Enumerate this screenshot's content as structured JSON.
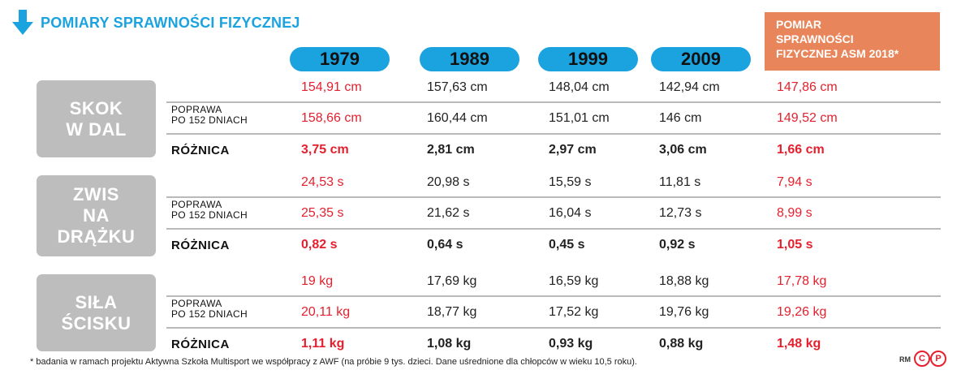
{
  "title": "POMIARY SPRAWNOŚCI FIZYCZNEJ",
  "asm_header": "POMIAR\nSPRAWNOŚCI\nFIZYCZNEJ ASM 2018*",
  "years": [
    "1979",
    "1989",
    "1999",
    "2009"
  ],
  "row_labels": {
    "baseline": "",
    "improvement": "POPRAWA\nPO 152 DNIACH",
    "difference": "RÓŻNICA"
  },
  "colors": {
    "accent": "#1aa3df",
    "asm": "#e9855a",
    "red": "#e5202e",
    "category": "#bdbdbd"
  },
  "chart_data": {
    "type": "table",
    "title": "POMIARY SPRAWNOŚCI FIZYCZNEJ",
    "columns": [
      "1979",
      "1989",
      "1999",
      "2009",
      "POMIAR SPRAWNOŚCI FIZYCZNEJ ASM 2018*"
    ],
    "groups": [
      {
        "name": "SKOK\nW DAL",
        "rows": [
          [
            "154,91 cm",
            "157,63 cm",
            "148,04 cm",
            "142,94 cm",
            "147,86 cm"
          ],
          [
            "158,66 cm",
            "160,44 cm",
            "151,01 cm",
            "146 cm",
            "149,52 cm"
          ],
          [
            "3,75 cm",
            "2,81 cm",
            "2,97 cm",
            "3,06 cm",
            "1,66 cm"
          ]
        ]
      },
      {
        "name": "ZWIS\nNA\nDRĄŻKU",
        "rows": [
          [
            "24,53 s",
            "20,98 s",
            "15,59 s",
            "11,81 s",
            "7,94 s"
          ],
          [
            "25,35 s",
            "21,62 s",
            "16,04 s",
            "12,73 s",
            "8,99 s"
          ],
          [
            "0,82 s",
            "0,64 s",
            "0,45 s",
            "0,92 s",
            "1,05 s"
          ]
        ]
      },
      {
        "name": "SIŁA\nŚCISKU",
        "rows": [
          [
            "19 kg",
            "17,69 kg",
            "16,59 kg",
            "18,88 kg",
            "17,78 kg"
          ],
          [
            "20,11 kg",
            "18,77 kg",
            "17,52 kg",
            "19,76 kg",
            "19,26 kg"
          ],
          [
            "1,11 kg",
            "1,08 kg",
            "0,93 kg",
            "0,88 kg",
            "1,48 kg"
          ]
        ]
      }
    ]
  },
  "footnote": "* badania w ramach projektu Aktywna Szkoła Multisport we współpracy z AWF (na próbie 9 tys. dzieci. Dane uśrednione dla chłopców w wieku 10,5 roku).",
  "credit": "RM",
  "credit_badges": [
    "C",
    "P"
  ]
}
